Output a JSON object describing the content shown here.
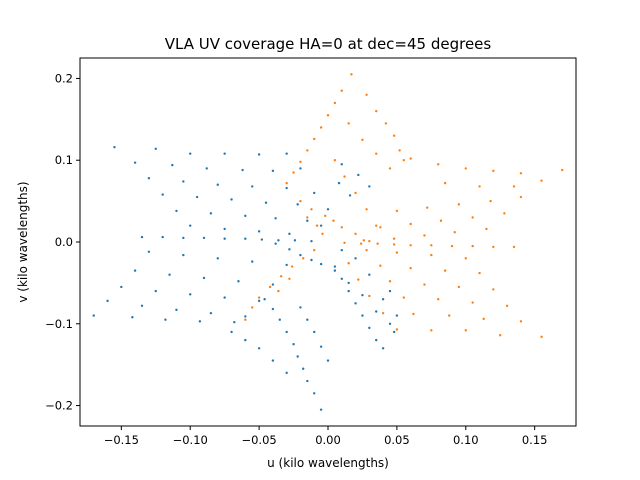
{
  "chart_data": {
    "type": "scatter",
    "title": "VLA UV coverage HA=0 at dec=45 degrees",
    "xlabel": "u (kilo wavelengths)",
    "ylabel": "v (kilo wavelengths)",
    "xlim": [
      -0.18,
      0.18
    ],
    "ylim": [
      -0.225,
      0.225
    ],
    "xticks": [
      -0.15,
      -0.1,
      -0.05,
      0.0,
      0.05,
      0.1,
      0.15
    ],
    "xtick_labels": [
      "−0.15",
      "−0.10",
      "−0.05",
      "0.00",
      "0.05",
      "0.10",
      "0.15"
    ],
    "yticks": [
      -0.2,
      -0.1,
      0.0,
      0.1,
      0.2
    ],
    "ytick_labels": [
      "−0.2",
      "−0.1",
      "0.0",
      "0.1",
      "0.2"
    ],
    "grid": false,
    "colors": {
      "series_1": "#1f77b4",
      "series_2": "#ff7f0e"
    },
    "series": [
      {
        "points": [
          [
            -0.155,
            0.116
          ],
          [
            -0.125,
            0.114
          ],
          [
            -0.1,
            0.108
          ],
          [
            -0.075,
            0.108
          ],
          [
            -0.05,
            0.107
          ],
          [
            -0.14,
            0.097
          ],
          [
            -0.113,
            0.094
          ],
          [
            -0.088,
            0.09
          ],
          [
            -0.062,
            0.088
          ],
          [
            -0.04,
            0.087
          ],
          [
            -0.13,
            0.078
          ],
          [
            -0.105,
            0.074
          ],
          [
            -0.08,
            0.07
          ],
          [
            -0.055,
            0.068
          ],
          [
            -0.03,
            0.066
          ],
          [
            -0.12,
            0.058
          ],
          [
            -0.095,
            0.055
          ],
          [
            -0.07,
            0.052
          ],
          [
            -0.045,
            0.048
          ],
          [
            -0.022,
            0.046
          ],
          [
            -0.11,
            0.038
          ],
          [
            -0.085,
            0.035
          ],
          [
            -0.06,
            0.032
          ],
          [
            -0.038,
            0.029
          ],
          [
            -0.015,
            0.026
          ],
          [
            -0.1,
            0.02
          ],
          [
            -0.075,
            0.016
          ],
          [
            -0.05,
            0.013
          ],
          [
            -0.028,
            0.01
          ],
          [
            -0.135,
            0.006
          ],
          [
            -0.12,
            0.006
          ],
          [
            -0.105,
            0.005
          ],
          [
            -0.09,
            0.005
          ],
          [
            -0.075,
            0.004
          ],
          [
            -0.06,
            0.004
          ],
          [
            -0.048,
            0.003
          ],
          [
            -0.036,
            0.002
          ],
          [
            -0.024,
            0.002
          ],
          [
            -0.012,
            0.001
          ],
          [
            -0.13,
            -0.012
          ],
          [
            -0.105,
            -0.016
          ],
          [
            -0.08,
            -0.02
          ],
          [
            -0.055,
            -0.024
          ],
          [
            -0.03,
            -0.028
          ],
          [
            -0.14,
            -0.035
          ],
          [
            -0.115,
            -0.04
          ],
          [
            -0.09,
            -0.044
          ],
          [
            -0.065,
            -0.048
          ],
          [
            -0.04,
            -0.052
          ],
          [
            -0.15,
            -0.055
          ],
          [
            -0.125,
            -0.06
          ],
          [
            -0.1,
            -0.064
          ],
          [
            -0.075,
            -0.068
          ],
          [
            -0.05,
            -0.072
          ],
          [
            -0.16,
            -0.072
          ],
          [
            -0.135,
            -0.078
          ],
          [
            -0.11,
            -0.083
          ],
          [
            -0.085,
            -0.087
          ],
          [
            -0.06,
            -0.091
          ],
          [
            -0.17,
            -0.09
          ],
          [
            -0.142,
            -0.092
          ],
          [
            -0.118,
            -0.095
          ],
          [
            -0.093,
            -0.097
          ],
          [
            -0.068,
            -0.098
          ],
          [
            -0.038,
            -0.002
          ],
          [
            -0.028,
            -0.009
          ],
          [
            -0.02,
            -0.016
          ],
          [
            -0.012,
            -0.022
          ],
          [
            -0.005,
            -0.027
          ],
          [
            -0.046,
            -0.07
          ],
          [
            -0.04,
            -0.082
          ],
          [
            -0.035,
            -0.095
          ],
          [
            -0.03,
            -0.11
          ],
          [
            -0.025,
            -0.125
          ],
          [
            -0.022,
            -0.14
          ],
          [
            -0.018,
            -0.155
          ],
          [
            -0.015,
            -0.17
          ],
          [
            -0.01,
            -0.185
          ],
          [
            -0.005,
            -0.205
          ],
          [
            -0.02,
            -0.08
          ],
          [
            -0.015,
            -0.095
          ],
          [
            -0.01,
            -0.11
          ],
          [
            -0.005,
            -0.128
          ],
          [
            0.0,
            -0.145
          ],
          [
            0.005,
            -0.03
          ],
          [
            0.01,
            -0.045
          ],
          [
            0.015,
            -0.06
          ],
          [
            0.02,
            -0.075
          ],
          [
            0.025,
            -0.09
          ],
          [
            0.03,
            -0.105
          ],
          [
            0.035,
            -0.12
          ],
          [
            0.04,
            -0.13
          ],
          [
            0.045,
            -0.1
          ],
          [
            0.035,
            -0.085
          ],
          [
            0.025,
            -0.065
          ],
          [
            0.015,
            -0.05
          ],
          [
            0.005,
            -0.035
          ],
          [
            0.048,
            -0.11
          ],
          [
            0.04,
            -0.07
          ],
          [
            0.03,
            -0.04
          ],
          [
            0.02,
            -0.02
          ],
          [
            0.01,
            -0.01
          ],
          [
            0.05,
            -0.09
          ],
          [
            0.045,
            -0.06
          ],
          [
            -0.07,
            -0.11
          ],
          [
            -0.06,
            -0.12
          ],
          [
            -0.05,
            -0.13
          ],
          [
            -0.04,
            -0.145
          ],
          [
            -0.03,
            -0.16
          ],
          [
            -0.03,
            0.108
          ],
          [
            -0.02,
            0.09
          ],
          [
            -0.01,
            0.06
          ],
          [
            0.0,
            0.04
          ],
          [
            -0.005,
            0.02
          ],
          [
            0.008,
            0.072
          ],
          [
            0.016,
            0.057
          ],
          [
            0.022,
            0.082
          ],
          [
            0.03,
            0.068
          ],
          [
            0.01,
            0.095
          ]
        ]
      },
      {
        "points": [
          [
            0.017,
            0.205
          ],
          [
            0.01,
            0.185
          ],
          [
            0.005,
            0.17
          ],
          [
            0.0,
            0.155
          ],
          [
            -0.005,
            0.14
          ],
          [
            -0.01,
            0.126
          ],
          [
            -0.015,
            0.112
          ],
          [
            -0.02,
            0.098
          ],
          [
            -0.025,
            0.085
          ],
          [
            -0.03,
            0.072
          ],
          [
            0.028,
            0.18
          ],
          [
            0.035,
            0.16
          ],
          [
            0.042,
            0.145
          ],
          [
            0.048,
            0.13
          ],
          [
            0.052,
            0.112
          ],
          [
            0.055,
            0.1
          ],
          [
            0.045,
            0.09
          ],
          [
            0.035,
            0.108
          ],
          [
            0.025,
            0.125
          ],
          [
            0.015,
            0.145
          ],
          [
            0.005,
            0.1
          ],
          [
            0.012,
            0.08
          ],
          [
            0.02,
            0.06
          ],
          [
            0.028,
            0.04
          ],
          [
            0.035,
            0.02
          ],
          [
            -0.015,
            0.03
          ],
          [
            -0.008,
            0.02
          ],
          [
            -0.004,
            0.01
          ],
          [
            -0.02,
            0.05
          ],
          [
            -0.012,
            0.04
          ],
          [
            0.06,
            0.102
          ],
          [
            0.08,
            0.095
          ],
          [
            0.1,
            0.09
          ],
          [
            0.12,
            0.087
          ],
          [
            0.14,
            0.084
          ],
          [
            0.17,
            0.088
          ],
          [
            0.155,
            0.075
          ],
          [
            0.135,
            0.068
          ],
          [
            0.11,
            0.068
          ],
          [
            0.085,
            0.072
          ],
          [
            0.14,
            0.055
          ],
          [
            0.118,
            0.05
          ],
          [
            0.095,
            0.046
          ],
          [
            0.072,
            0.042
          ],
          [
            0.05,
            0.038
          ],
          [
            0.128,
            0.035
          ],
          [
            0.105,
            0.03
          ],
          [
            0.082,
            0.026
          ],
          [
            0.06,
            0.022
          ],
          [
            0.038,
            0.018
          ],
          [
            0.115,
            0.016
          ],
          [
            0.092,
            0.012
          ],
          [
            0.07,
            0.008
          ],
          [
            0.048,
            0.004
          ],
          [
            0.026,
            0.002
          ],
          [
            0.012,
            -0.001
          ],
          [
            0.024,
            -0.002
          ],
          [
            0.036,
            -0.002
          ],
          [
            0.048,
            -0.003
          ],
          [
            0.06,
            -0.004
          ],
          [
            0.075,
            -0.004
          ],
          [
            0.09,
            -0.005
          ],
          [
            0.105,
            -0.005
          ],
          [
            0.12,
            -0.006
          ],
          [
            0.135,
            -0.006
          ],
          [
            0.1,
            -0.02
          ],
          [
            0.075,
            -0.016
          ],
          [
            0.05,
            -0.013
          ],
          [
            0.028,
            -0.01
          ],
          [
            0.11,
            -0.038
          ],
          [
            0.085,
            -0.035
          ],
          [
            0.06,
            -0.032
          ],
          [
            0.038,
            -0.029
          ],
          [
            0.015,
            -0.026
          ],
          [
            0.12,
            -0.058
          ],
          [
            0.095,
            -0.055
          ],
          [
            0.07,
            -0.052
          ],
          [
            0.045,
            -0.048
          ],
          [
            0.022,
            -0.046
          ],
          [
            0.13,
            -0.078
          ],
          [
            0.105,
            -0.074
          ],
          [
            0.08,
            -0.07
          ],
          [
            0.055,
            -0.068
          ],
          [
            0.03,
            -0.066
          ],
          [
            0.14,
            -0.097
          ],
          [
            0.113,
            -0.094
          ],
          [
            0.088,
            -0.09
          ],
          [
            0.062,
            -0.088
          ],
          [
            0.04,
            -0.087
          ],
          [
            0.155,
            -0.116
          ],
          [
            0.125,
            -0.114
          ],
          [
            0.1,
            -0.108
          ],
          [
            0.075,
            -0.108
          ],
          [
            0.05,
            -0.107
          ],
          [
            0.03,
            0.001
          ],
          [
            0.02,
            0.01
          ],
          [
            0.01,
            0.018
          ],
          [
            0.004,
            0.026
          ],
          [
            -0.002,
            0.032
          ],
          [
            -0.01,
            -0.01
          ],
          [
            -0.018,
            -0.02
          ],
          [
            -0.026,
            -0.03
          ],
          [
            -0.034,
            -0.042
          ],
          [
            -0.042,
            -0.055
          ],
          [
            -0.05,
            -0.068
          ],
          [
            -0.055,
            -0.08
          ],
          [
            -0.06,
            -0.095
          ],
          [
            -0.036,
            -0.06
          ],
          [
            -0.028,
            -0.045
          ]
        ]
      }
    ]
  }
}
